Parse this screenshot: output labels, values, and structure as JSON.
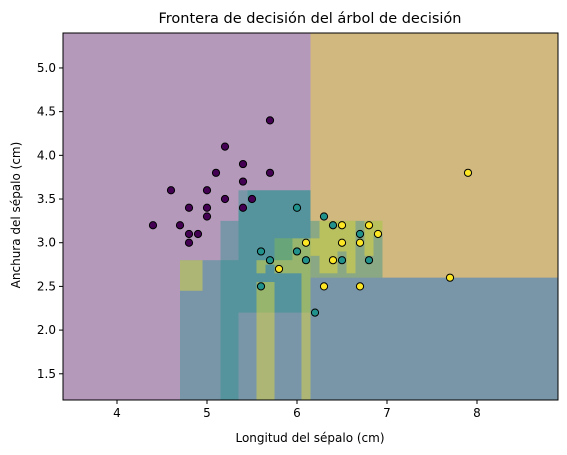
{
  "chart_data": {
    "type": "scatter",
    "title": "Frontera de decisión del árbol de decisión",
    "xlabel": "Longitud del sépalo (cm)",
    "ylabel": "Anchura del sépalo (cm)",
    "xlim": [
      3.4,
      8.9
    ],
    "ylim": [
      1.2,
      5.4
    ],
    "x_ticks": [
      4,
      5,
      6,
      7,
      8
    ],
    "y_ticks": [
      1.5,
      2.0,
      2.5,
      3.0,
      3.5,
      4.0,
      4.5,
      5.0
    ],
    "grid": false,
    "class_colors": {
      "0": "#440154",
      "1": "#21918c",
      "2": "#fde725"
    },
    "region_opacity": 0.4,
    "decision_regions": [
      {
        "class": 0,
        "x": [
          3.4,
          8.9
        ],
        "y": [
          1.2,
          5.4
        ]
      },
      {
        "class": 2,
        "x": [
          6.15,
          8.9
        ],
        "y": [
          2.6,
          5.4
        ]
      },
      {
        "class": 1,
        "x": [
          5.45,
          6.15
        ],
        "y": [
          2.2,
          3.6
        ]
      },
      {
        "class": 1,
        "x": [
          5.35,
          5.45
        ],
        "y": [
          2.2,
          3.4
        ]
      },
      {
        "class": 1,
        "x": [
          5.35,
          6.15
        ],
        "y": [
          1.2,
          3.6
        ]
      },
      {
        "class": 1,
        "x": [
          4.7,
          5.35
        ],
        "y": [
          1.2,
          2.8
        ]
      },
      {
        "class": 1,
        "x": [
          5.15,
          5.35
        ],
        "y": [
          1.2,
          3.25
        ]
      },
      {
        "class": 1,
        "x": [
          6.15,
          8.9
        ],
        "y": [
          1.2,
          2.6
        ]
      },
      {
        "class": 1,
        "x": [
          6.15,
          6.95
        ],
        "y": [
          2.6,
          3.25
        ]
      },
      {
        "class": 2,
        "x": [
          4.7,
          4.95
        ],
        "y": [
          2.45,
          2.8
        ]
      },
      {
        "class": 2,
        "x": [
          5.55,
          5.75
        ],
        "y": [
          1.2,
          2.55
        ]
      },
      {
        "class": 2,
        "x": [
          6.05,
          6.15
        ],
        "y": [
          1.2,
          3.05
        ]
      },
      {
        "class": 2,
        "x": [
          5.55,
          5.65
        ],
        "y": [
          2.65,
          2.8
        ]
      },
      {
        "class": 2,
        "x": [
          5.65,
          5.75
        ],
        "y": [
          2.75,
          2.8
        ]
      },
      {
        "class": 2,
        "x": [
          5.75,
          6.05
        ],
        "y": [
          2.65,
          3.05
        ]
      },
      {
        "class": 1,
        "x": [
          5.75,
          5.95
        ],
        "y": [
          2.8,
          3.05
        ]
      },
      {
        "class": 2,
        "x": [
          6.15,
          6.25
        ],
        "y": [
          2.85,
          3.05
        ]
      },
      {
        "class": 2,
        "x": [
          6.25,
          6.45
        ],
        "y": [
          2.65,
          3.25
        ]
      },
      {
        "class": 2,
        "x": [
          6.45,
          6.55
        ],
        "y": [
          2.9,
          3.25
        ]
      },
      {
        "class": 2,
        "x": [
          6.55,
          6.65
        ],
        "y": [
          2.65,
          3.25
        ]
      },
      {
        "class": 2,
        "x": [
          6.75,
          6.85
        ],
        "y": [
          2.85,
          3.25
        ]
      },
      {
        "class": 2,
        "x": [
          6.85,
          6.95
        ],
        "y": [
          3.1,
          3.25
        ]
      }
    ],
    "series": [
      {
        "class": 0,
        "points": [
          [
            4.4,
            3.2
          ],
          [
            4.6,
            3.6
          ],
          [
            4.7,
            3.2
          ],
          [
            4.8,
            3.4
          ],
          [
            4.8,
            3.1
          ],
          [
            4.8,
            3.0
          ],
          [
            4.9,
            3.1
          ],
          [
            5.0,
            3.6
          ],
          [
            5.0,
            3.4
          ],
          [
            5.0,
            3.3
          ],
          [
            5.1,
            3.8
          ],
          [
            5.2,
            4.1
          ],
          [
            5.2,
            3.5
          ],
          [
            5.4,
            3.9
          ],
          [
            5.4,
            3.7
          ],
          [
            5.4,
            3.4
          ],
          [
            5.5,
            3.5
          ],
          [
            5.7,
            4.4
          ],
          [
            5.7,
            3.8
          ]
        ]
      },
      {
        "class": 1,
        "points": [
          [
            5.6,
            2.9
          ],
          [
            5.7,
            2.8
          ],
          [
            6.0,
            3.4
          ],
          [
            6.0,
            2.9
          ],
          [
            6.1,
            2.8
          ],
          [
            6.3,
            3.3
          ],
          [
            6.4,
            3.2
          ],
          [
            6.5,
            2.8
          ],
          [
            6.7,
            3.1
          ],
          [
            6.8,
            2.8
          ],
          [
            6.2,
            2.2
          ],
          [
            5.6,
            2.5
          ]
        ]
      },
      {
        "class": 2,
        "points": [
          [
            5.8,
            2.7
          ],
          [
            6.1,
            3.0
          ],
          [
            6.3,
            2.5
          ],
          [
            6.4,
            2.8
          ],
          [
            6.5,
            3.2
          ],
          [
            6.5,
            3.0
          ],
          [
            6.7,
            3.0
          ],
          [
            6.8,
            3.2
          ],
          [
            6.9,
            3.1
          ],
          [
            6.7,
            2.5
          ],
          [
            7.7,
            2.6
          ],
          [
            7.9,
            3.8
          ]
        ]
      }
    ]
  }
}
